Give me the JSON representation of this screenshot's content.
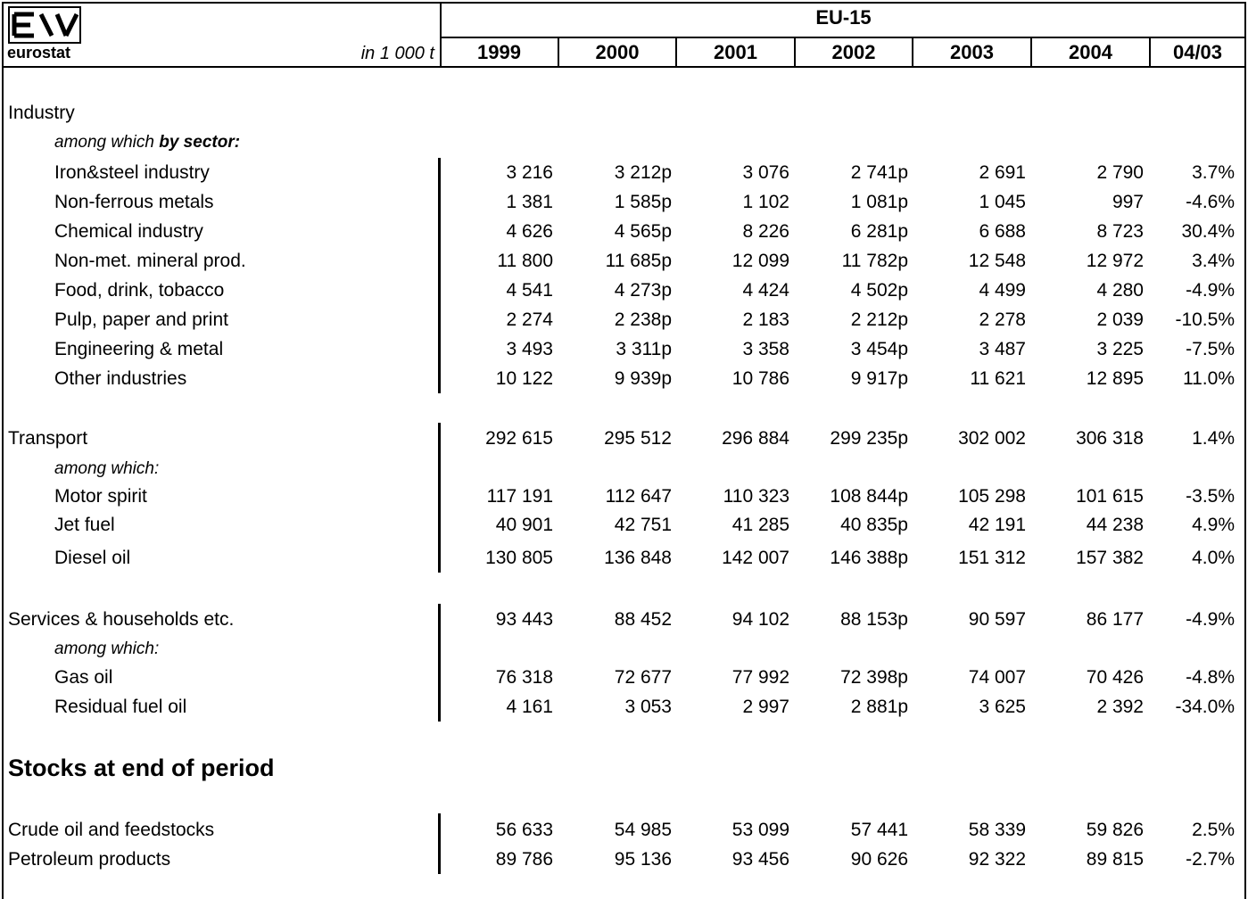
{
  "logo": {
    "text": "eurostat"
  },
  "header": {
    "region": "EU-15",
    "unit": "in 1 000 t",
    "years": [
      "1999",
      "2000",
      "2001",
      "2002",
      "2003",
      "2004",
      "04/03"
    ]
  },
  "sections": {
    "industry": {
      "label": "Industry",
      "sublabel_prefix": "among which ",
      "sublabel_bold": "by sector:",
      "rows": [
        {
          "label": "Iron&steel industry",
          "values": [
            "3 216",
            "3 212p",
            "3 076",
            "2 741p",
            "2 691",
            "2 790",
            "3.7%"
          ]
        },
        {
          "label": "Non-ferrous metals",
          "values": [
            "1 381",
            "1 585p",
            "1 102",
            "1 081p",
            "1 045",
            "997",
            "-4.6%"
          ]
        },
        {
          "label": "Chemical industry",
          "values": [
            "4 626",
            "4 565p",
            "8 226",
            "6 281p",
            "6 688",
            "8 723",
            "30.4%"
          ]
        },
        {
          "label": "Non-met. mineral prod.",
          "values": [
            "11 800",
            "11 685p",
            "12 099",
            "11 782p",
            "12 548",
            "12 972",
            "3.4%"
          ]
        },
        {
          "label": "Food, drink, tobacco",
          "values": [
            "4 541",
            "4 273p",
            "4 424",
            "4 502p",
            "4 499",
            "4 280",
            "-4.9%"
          ]
        },
        {
          "label": "Pulp, paper and print",
          "values": [
            "2 274",
            "2 238p",
            "2 183",
            "2 212p",
            "2 278",
            "2 039",
            "-10.5%"
          ]
        },
        {
          "label": "Engineering & metal",
          "values": [
            "3 493",
            "3 311p",
            "3 358",
            "3 454p",
            "3 487",
            "3 225",
            "-7.5%"
          ]
        },
        {
          "label": "Other industries",
          "values": [
            "10 122",
            "9 939p",
            "10 786",
            "9 917p",
            "11 621",
            "12 895",
            "11.0%"
          ]
        }
      ]
    },
    "transport": {
      "label": "Transport",
      "values": [
        "292 615",
        "295 512",
        "296 884",
        "299 235p",
        "302 002",
        "306 318",
        "1.4%"
      ],
      "sublabel": "among which:",
      "rows": [
        {
          "label": "Motor spirit",
          "values": [
            "117 191",
            "112 647",
            "110 323",
            "108 844p",
            "105 298",
            "101 615",
            "-3.5%"
          ]
        },
        {
          "label": "Jet fuel",
          "values": [
            "40 901",
            "42 751",
            "41 285",
            "40 835p",
            "42 191",
            "44 238",
            "4.9%"
          ]
        },
        {
          "label": "Diesel oil",
          "values": [
            "130 805",
            "136 848",
            "142 007",
            "146 388p",
            "151 312",
            "157 382",
            "4.0%"
          ]
        }
      ]
    },
    "services": {
      "label": "Services & households etc.",
      "values": [
        "93 443",
        "88 452",
        "94 102",
        "88 153p",
        "90 597",
        "86 177",
        "-4.9%"
      ],
      "sublabel": "among which:",
      "rows": [
        {
          "label": "Gas oil",
          "values": [
            "76 318",
            "72 677",
            "77 992",
            "72 398p",
            "74 007",
            "70 426",
            "-4.8%"
          ]
        },
        {
          "label": "Residual fuel oil",
          "values": [
            "4 161",
            "3 053",
            "2 997",
            "2 881p",
            "3 625",
            "2 392",
            "-34.0%"
          ]
        }
      ]
    },
    "stocks": {
      "title": "Stocks at end of period",
      "rows": [
        {
          "label": "Crude oil and feedstocks",
          "values": [
            "56 633",
            "54 985",
            "53 099",
            "57 441",
            "58 339",
            "59 826",
            "2.5%"
          ]
        },
        {
          "label": "Petroleum products",
          "values": [
            "89 786",
            "95 136",
            "93 456",
            "90 626",
            "92 322",
            "89 815",
            "-2.7%"
          ]
        }
      ]
    }
  }
}
